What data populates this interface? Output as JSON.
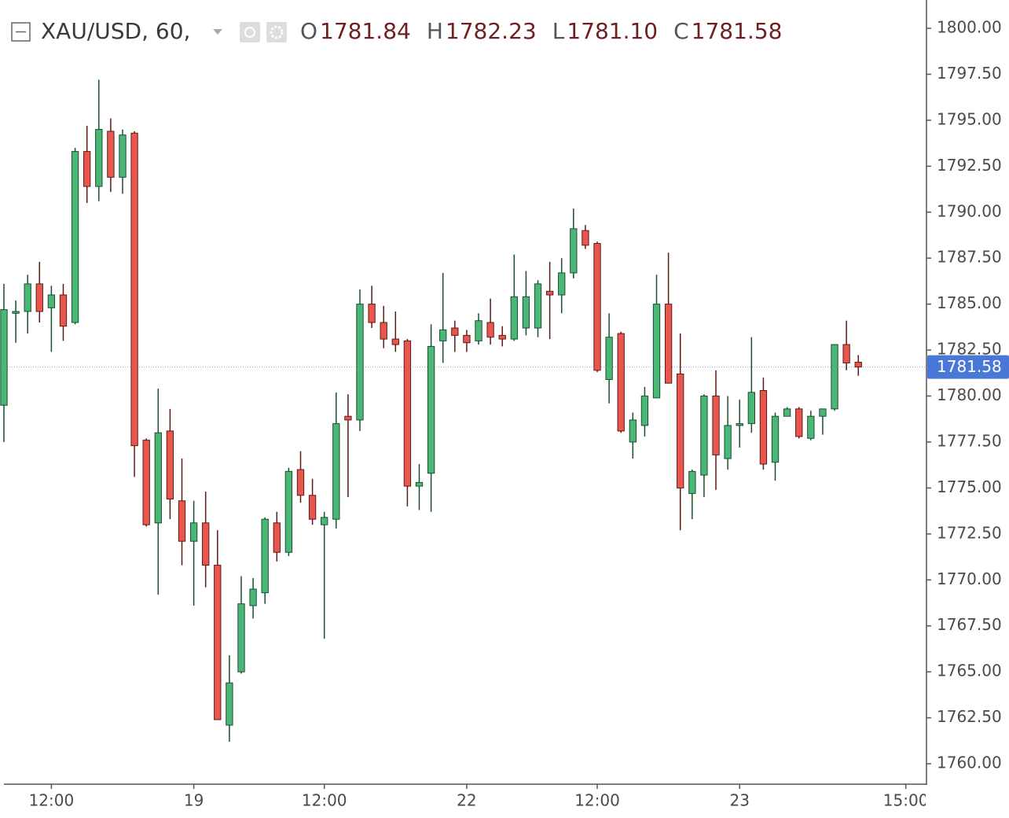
{
  "header": {
    "symbol": "XAU/USD, 60,",
    "ohlc": [
      {
        "label": "O",
        "value": "1781.84"
      },
      {
        "label": "H",
        "value": "1782.23"
      },
      {
        "label": "L",
        "value": "1781.10"
      },
      {
        "label": "C",
        "value": "1781.58"
      }
    ]
  },
  "chart_data": {
    "type": "candlestick",
    "up_color": "#4bb777",
    "down_color": "#e9564e",
    "up_border": "#1b4d31",
    "down_border": "#5c1a17",
    "x": [
      0,
      1,
      2,
      3,
      4,
      5,
      6,
      7,
      8,
      9,
      10,
      11,
      12,
      13,
      14,
      15,
      16,
      17,
      18,
      19,
      20,
      21,
      22,
      23,
      24,
      25,
      26,
      27,
      28,
      29,
      30,
      31,
      32,
      33,
      34,
      35,
      36,
      37,
      38,
      39,
      40,
      41,
      42,
      43,
      44,
      45,
      46,
      47,
      48,
      49,
      50,
      51,
      52,
      53,
      54,
      55,
      56,
      57,
      58,
      59,
      60,
      61,
      62,
      63,
      64,
      65,
      66,
      67,
      68,
      69,
      70,
      71,
      72
    ],
    "open": [
      1779.5,
      1784.5,
      1784.6,
      1786.1,
      1784.8,
      1785.5,
      1784.0,
      1793.3,
      1791.4,
      1794.4,
      1791.9,
      1794.3,
      1777.6,
      1773.1,
      1778.1,
      1774.3,
      1772.1,
      1773.1,
      1770.8,
      1762.1,
      1765.0,
      1768.6,
      1769.3,
      1773.1,
      1771.5,
      1776.0,
      1774.6,
      1773.0,
      1773.3,
      1778.9,
      1778.7,
      1785.0,
      1784.0,
      1783.1,
      1783.0,
      1775.1,
      1775.8,
      1783.0,
      1783.7,
      1783.3,
      1783.0,
      1784.0,
      1783.3,
      1783.1,
      1783.7,
      1783.7,
      1785.7,
      1785.5,
      1786.7,
      1789.0,
      1788.3,
      1780.9,
      1783.4,
      1777.5,
      1778.4,
      1779.9,
      1785.0,
      1781.2,
      1774.7,
      1775.7,
      1780.0,
      1776.6,
      1778.4,
      1778.5,
      1780.3,
      1776.4,
      1778.9,
      1779.3,
      1777.7,
      1778.9,
      1779.3,
      1782.8,
      1781.84
    ],
    "high": [
      1786.1,
      1785.2,
      1786.6,
      1787.3,
      1786.0,
      1786.1,
      1793.5,
      1794.7,
      1797.2,
      1795.1,
      1794.5,
      1794.4,
      1777.7,
      1780.4,
      1779.3,
      1776.6,
      1774.3,
      1774.8,
      1772.7,
      1765.9,
      1770.2,
      1770.1,
      1773.4,
      1773.7,
      1776.1,
      1777.0,
      1775.5,
      1773.7,
      1780.2,
      1780.1,
      1785.8,
      1786.0,
      1784.9,
      1784.6,
      1783.1,
      1776.3,
      1783.9,
      1786.7,
      1784.1,
      1783.6,
      1784.5,
      1785.3,
      1783.8,
      1787.7,
      1786.8,
      1786.3,
      1787.3,
      1787.5,
      1790.2,
      1789.3,
      1788.4,
      1784.5,
      1783.5,
      1779.1,
      1780.5,
      1786.6,
      1787.8,
      1783.4,
      1776.0,
      1780.1,
      1781.4,
      1780.0,
      1779.8,
      1783.2,
      1781.0,
      1779.1,
      1779.4,
      1779.4,
      1779.2,
      1779.3,
      1782.8,
      1784.1,
      1782.23
    ],
    "low": [
      1777.5,
      1782.9,
      1783.4,
      1784.0,
      1782.4,
      1783.0,
      1783.9,
      1790.5,
      1790.6,
      1791.1,
      1791.0,
      1775.6,
      1772.9,
      1769.2,
      1773.3,
      1770.8,
      1768.6,
      1769.6,
      1762.4,
      1761.2,
      1764.9,
      1767.9,
      1768.7,
      1771.0,
      1771.3,
      1774.2,
      1773.0,
      1766.8,
      1772.8,
      1774.5,
      1778.1,
      1783.7,
      1782.6,
      1782.4,
      1774.0,
      1773.8,
      1773.7,
      1781.8,
      1782.4,
      1782.4,
      1782.8,
      1782.8,
      1782.7,
      1783.0,
      1783.3,
      1783.2,
      1783.1,
      1784.5,
      1786.4,
      1788.0,
      1781.3,
      1779.6,
      1778.0,
      1776.6,
      1777.8,
      1779.9,
      1780.7,
      1772.7,
      1773.3,
      1774.5,
      1774.9,
      1776.0,
      1777.2,
      1778.0,
      1776.0,
      1775.4,
      1778.9,
      1777.7,
      1777.6,
      1777.9,
      1779.2,
      1781.4,
      1781.1
    ],
    "close": [
      1784.7,
      1784.6,
      1786.1,
      1784.6,
      1785.5,
      1783.8,
      1793.3,
      1791.4,
      1794.5,
      1791.9,
      1794.2,
      1777.3,
      1773.0,
      1778.0,
      1774.4,
      1772.1,
      1773.1,
      1770.8,
      1762.4,
      1764.4,
      1768.7,
      1769.5,
      1773.3,
      1771.5,
      1775.9,
      1774.6,
      1773.3,
      1773.4,
      1778.5,
      1778.7,
      1785.0,
      1784.0,
      1783.1,
      1782.8,
      1775.1,
      1775.3,
      1782.7,
      1783.6,
      1783.3,
      1782.9,
      1784.1,
      1783.2,
      1783.1,
      1785.4,
      1785.4,
      1786.1,
      1785.5,
      1786.7,
      1789.1,
      1788.2,
      1781.4,
      1783.2,
      1778.1,
      1778.7,
      1780.0,
      1785.0,
      1780.7,
      1775.0,
      1775.9,
      1780.0,
      1776.8,
      1778.4,
      1778.5,
      1780.2,
      1776.3,
      1778.9,
      1779.3,
      1777.8,
      1778.9,
      1779.3,
      1782.8,
      1781.8,
      1781.58
    ],
    "xlim": [
      -0.33,
      77.68
    ],
    "xticks": [
      {
        "value": 4,
        "label": "12:00"
      },
      {
        "value": 16,
        "label": "19"
      },
      {
        "value": 27,
        "label": "12:00"
      },
      {
        "value": 39,
        "label": "22"
      },
      {
        "value": 50,
        "label": "12:00"
      },
      {
        "value": 62,
        "label": "23"
      },
      {
        "value": 76,
        "label": "15:00"
      }
    ],
    "ylim": [
      1758.89,
      1801.54
    ],
    "yticks": [
      {
        "value": 1760,
        "label": "1760.00"
      },
      {
        "value": 1762.5,
        "label": "1762.50"
      },
      {
        "value": 1765,
        "label": "1765.00"
      },
      {
        "value": 1767.5,
        "label": "1767.50"
      },
      {
        "value": 1770,
        "label": "1770.00"
      },
      {
        "value": 1772.5,
        "label": "1772.50"
      },
      {
        "value": 1775,
        "label": "1775.00"
      },
      {
        "value": 1777.5,
        "label": "1777.50"
      },
      {
        "value": 1780,
        "label": "1780.00"
      },
      {
        "value": 1782.5,
        "label": "1782.50"
      },
      {
        "value": 1785,
        "label": "1785.00"
      },
      {
        "value": 1787.5,
        "label": "1787.50"
      },
      {
        "value": 1790,
        "label": "1790.00"
      },
      {
        "value": 1792.5,
        "label": "1792.50"
      },
      {
        "value": 1795,
        "label": "1795.00"
      },
      {
        "value": 1797.5,
        "label": "1797.50"
      },
      {
        "value": 1800,
        "label": "1800.00"
      }
    ],
    "last_price": {
      "value": 1781.58,
      "label": "1781.58",
      "color": "#4a78d6"
    }
  }
}
